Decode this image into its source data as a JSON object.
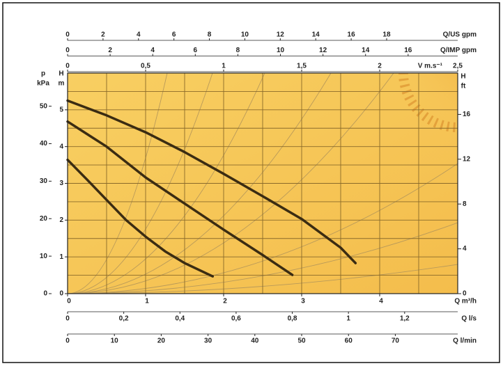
{
  "chart_data": {
    "type": "line",
    "xlim": [
      0,
      5
    ],
    "xticks": [
      0,
      1,
      2,
      3,
      4
    ],
    "x_label": "Q m³/h",
    "ylim": [
      0,
      6
    ],
    "yticks": [
      0,
      1,
      2,
      3,
      4,
      5
    ],
    "y_label": [
      "H",
      "m"
    ],
    "grid_x": [
      0,
      0.5,
      1,
      1.5,
      2,
      2.5,
      3,
      3.5,
      4,
      4.5,
      5
    ],
    "grid_y": [
      0,
      0.5,
      1,
      1.5,
      2,
      2.5,
      3,
      3.5,
      4,
      4.5,
      5,
      5.5,
      6
    ],
    "series": [
      {
        "color": "#3b2c12",
        "x": [
          0,
          0.25,
          0.5,
          0.75,
          1.0,
          1.25,
          1.5,
          1.86
        ],
        "values": [
          3.64,
          3.1,
          2.55,
          2.0,
          1.55,
          1.15,
          0.83,
          0.47
        ]
      },
      {
        "color": "#3b2c12",
        "x": [
          0,
          0.5,
          1,
          1.5,
          2,
          2.5,
          2.88
        ],
        "values": [
          4.68,
          4.0,
          3.16,
          2.45,
          1.74,
          1.05,
          0.51
        ]
      },
      {
        "color": "#3b2c12",
        "x": [
          0,
          0.5,
          1,
          1.5,
          2,
          2.5,
          3,
          3.5,
          3.69
        ],
        "values": [
          5.25,
          4.85,
          4.39,
          3.85,
          3.26,
          2.65,
          2.03,
          1.25,
          0.83
        ]
      }
    ],
    "extra_axes": [
      {
        "position": "left",
        "label": [
          "p",
          "kPa"
        ],
        "lim": [
          0,
          58.84
        ],
        "ticks": [
          0,
          10,
          20,
          30,
          40,
          50
        ]
      },
      {
        "position": "right",
        "label": [
          "H",
          "ft"
        ],
        "lim": [
          0,
          19.69
        ],
        "ticks": [
          0,
          4,
          8,
          12,
          16
        ]
      },
      {
        "position": "top",
        "label": "Q/US gpm",
        "lim": [
          0,
          22.01
        ],
        "ticks": [
          0,
          2,
          4,
          6,
          8,
          10,
          12,
          14,
          16,
          18
        ]
      },
      {
        "position": "top",
        "label": "Q/IMP gpm",
        "lim": [
          0,
          18.33
        ],
        "ticks": [
          0,
          2,
          4,
          6,
          8,
          10,
          12,
          14,
          16
        ]
      },
      {
        "position": "top",
        "label": "V m.s⁻¹",
        "lim": [
          0,
          2.5
        ],
        "ticks": [
          0,
          {
            "value": 0.5,
            "label": "0,5"
          },
          1,
          {
            "value": 1.5,
            "label": "1,5"
          },
          2,
          {
            "value": 2.5,
            "label": "2,5"
          }
        ]
      },
      {
        "position": "bottom",
        "label": "Q l/s",
        "lim": [
          0,
          1.389
        ],
        "ticks": [
          0,
          {
            "value": 0.2,
            "label": "0,2"
          },
          {
            "value": 0.4,
            "label": "0,4"
          },
          {
            "value": 0.6,
            "label": "0,6"
          },
          {
            "value": 0.8,
            "label": "0,8"
          },
          1,
          {
            "value": 1.2,
            "label": "1,2"
          }
        ]
      },
      {
        "position": "bottom",
        "label": "Q l/min",
        "lim": [
          0,
          83.33
        ],
        "ticks": [
          0,
          10,
          20,
          30,
          40,
          50,
          60,
          70
        ]
      }
    ]
  }
}
